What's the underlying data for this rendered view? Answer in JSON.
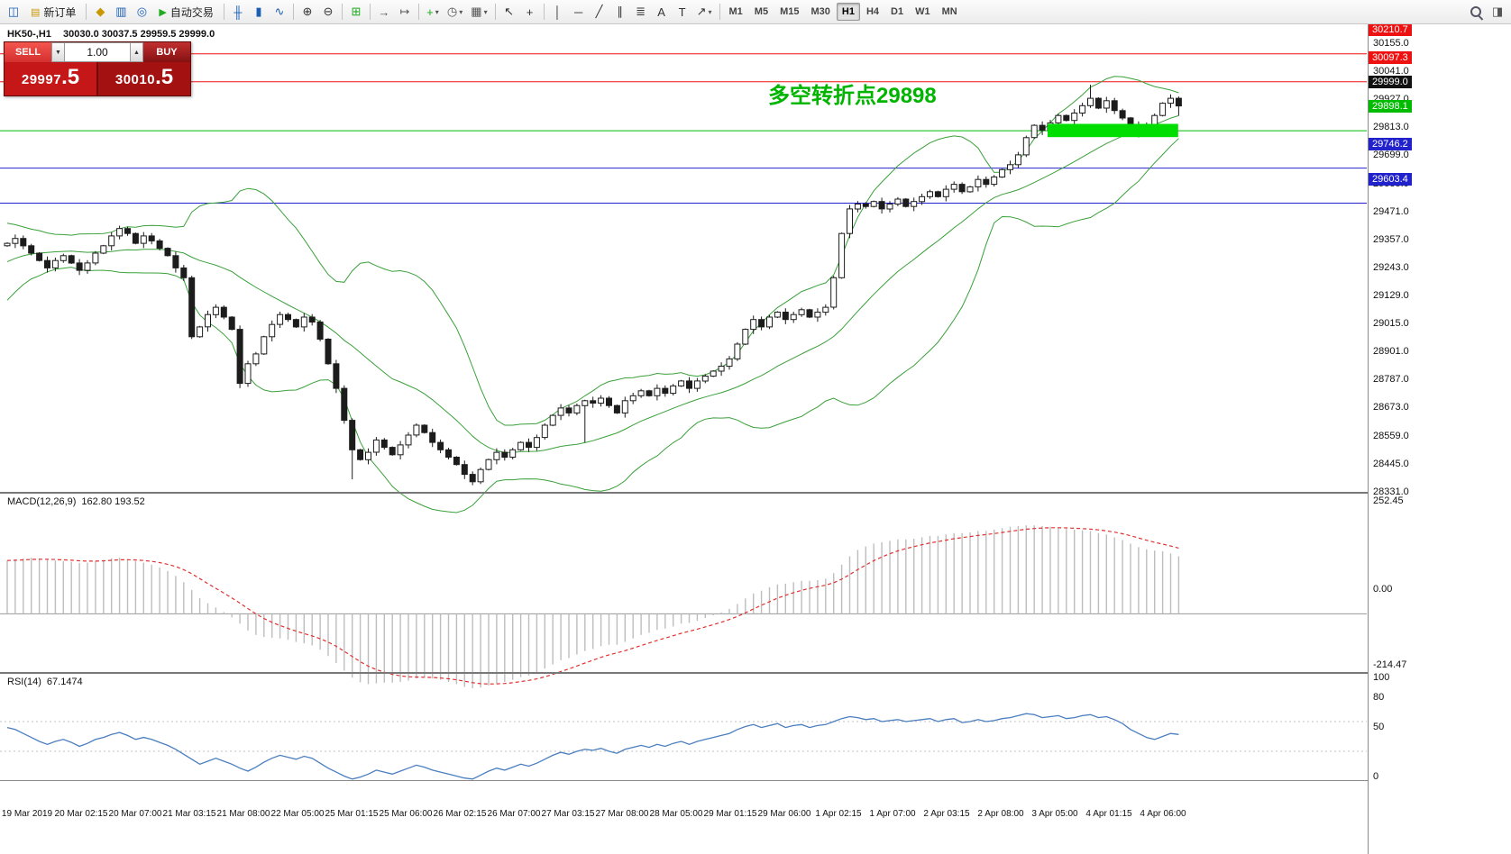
{
  "toolbar": {
    "active_timeframe": "H1",
    "items": [
      {
        "type": "icon",
        "name": "chart-window-icon",
        "glyph": "◫",
        "color": "#1a5fb4"
      },
      {
        "type": "button",
        "name": "new-order-button",
        "icon_name": "new-order-icon",
        "icon_glyph": "▤",
        "icon_color": "#c99700",
        "label": "新订单"
      },
      {
        "type": "sep"
      },
      {
        "type": "icon",
        "name": "market-watch-icon",
        "glyph": "◆",
        "color": "#c99700"
      },
      {
        "type": "icon",
        "name": "data-window-icon",
        "glyph": "▥",
        "color": "#1a5fb4"
      },
      {
        "type": "icon",
        "name": "navigator-icon",
        "glyph": "◎",
        "color": "#1a5fb4"
      },
      {
        "type": "button",
        "name": "auto-trading-button",
        "icon_name": "play-icon",
        "icon_glyph": "▶",
        "icon_color": "#1faa1f",
        "label": "自动交易"
      },
      {
        "type": "sep"
      },
      {
        "type": "icon",
        "name": "bar-chart-icon",
        "glyph": "╫",
        "color": "#1a5fb4"
      },
      {
        "type": "icon",
        "name": "candle-chart-icon",
        "glyph": "▮",
        "color": "#1a5fb4"
      },
      {
        "type": "icon",
        "name": "line-chart-icon",
        "glyph": "∿",
        "color": "#1a5fb4"
      },
      {
        "type": "sep"
      },
      {
        "type": "icon",
        "name": "zoom-in-icon",
        "glyph": "⊕",
        "color": "#333333"
      },
      {
        "type": "icon",
        "name": "zoom-out-icon",
        "glyph": "⊖",
        "color": "#333333"
      },
      {
        "type": "sep"
      },
      {
        "type": "icon",
        "name": "tile-windows-icon",
        "glyph": "⊞",
        "color": "#1faa1f"
      },
      {
        "type": "sep"
      },
      {
        "type": "icon",
        "name": "auto-scroll-icon",
        "glyph": "→",
        "color": "#555555"
      },
      {
        "type": "icon",
        "name": "chart-shift-icon",
        "glyph": "↦",
        "color": "#555555"
      },
      {
        "type": "sep"
      },
      {
        "type": "icon",
        "name": "indicators-icon",
        "glyph": "+",
        "color": "#1faa1f",
        "dropdown": true
      },
      {
        "type": "icon",
        "name": "periods-icon",
        "glyph": "◷",
        "color": "#555555",
        "dropdown": true
      },
      {
        "type": "icon",
        "name": "templates-icon",
        "glyph": "▦",
        "color": "#555555",
        "dropdown": true
      },
      {
        "type": "sep"
      },
      {
        "type": "icon",
        "name": "cursor-icon",
        "glyph": "↖",
        "color": "#333333"
      },
      {
        "type": "icon",
        "name": "crosshair-icon",
        "glyph": "+",
        "color": "#333333"
      },
      {
        "type": "sep"
      },
      {
        "type": "icon",
        "name": "vertical-line-icon",
        "glyph": "│",
        "color": "#333333"
      },
      {
        "type": "icon",
        "name": "horizontal-line-icon",
        "glyph": "─",
        "color": "#333333"
      },
      {
        "type": "icon",
        "name": "trendline-icon",
        "glyph": "╱",
        "color": "#333333"
      },
      {
        "type": "icon",
        "name": "channel-icon",
        "glyph": "∥",
        "color": "#333333"
      },
      {
        "type": "icon",
        "name": "fibonacci-icon",
        "glyph": "≣",
        "color": "#333333"
      },
      {
        "type": "icon",
        "name": "text-icon",
        "glyph": "A",
        "color": "#333333"
      },
      {
        "type": "icon",
        "name": "text-label-icon",
        "glyph": "T",
        "color": "#333333"
      },
      {
        "type": "icon",
        "name": "arrows-icon",
        "glyph": "↗",
        "color": "#333333",
        "dropdown": true
      },
      {
        "type": "sep"
      },
      {
        "type": "tf",
        "name": "timeframe-m1",
        "label": "M1"
      },
      {
        "type": "tf",
        "name": "timeframe-m5",
        "label": "M5"
      },
      {
        "type": "tf",
        "name": "timeframe-m15",
        "label": "M15"
      },
      {
        "type": "tf",
        "name": "timeframe-m30",
        "label": "M30"
      },
      {
        "type": "tf",
        "name": "timeframe-h1",
        "label": "H1"
      },
      {
        "type": "tf",
        "name": "timeframe-h4",
        "label": "H4"
      },
      {
        "type": "tf",
        "name": "timeframe-d1",
        "label": "D1"
      },
      {
        "type": "tf",
        "name": "timeframe-w1",
        "label": "W1"
      },
      {
        "type": "tf",
        "name": "timeframe-mn",
        "label": "MN"
      },
      {
        "type": "spacer"
      },
      {
        "type": "icon",
        "name": "search-icon",
        "glyph": "",
        "magnifier": true
      },
      {
        "type": "icon",
        "name": "panel-toggle-icon",
        "glyph": "◨",
        "color": "#555555"
      }
    ]
  },
  "order_panel": {
    "sell_label": "SELL",
    "buy_label": "BUY",
    "volume": "1.00",
    "dropdown_glyph": "▼",
    "spinner_glyph": "▲",
    "sell_price_main": "29997",
    "sell_price_big": ".5",
    "buy_price_main": "30010",
    "buy_price_big": ".5"
  },
  "chart_data": {
    "type": "candlestick",
    "symbol": "HK50-",
    "timeframe": "H1",
    "title": "HK50-,H1",
    "ohlc_label": "30030.0 30037.5 29959.5 29999.0",
    "axis_price_top": 30232,
    "axis_price_bottom": 28330,
    "candle_color_up": "#ffffff",
    "candle_color_down": "#1c1c1c",
    "candle_outline": "#1c1c1c",
    "price_axis_ticks": [
      {
        "label": "30155.0",
        "price": 30155
      },
      {
        "label": "30041.0",
        "price": 30041
      },
      {
        "label": "29927.0",
        "price": 29927
      },
      {
        "label": "29813.0",
        "price": 29813
      },
      {
        "label": "29699.0",
        "price": 29699
      },
      {
        "label": "29585.0",
        "price": 29585
      },
      {
        "label": "29471.0",
        "price": 29471
      },
      {
        "label": "29357.0",
        "price": 29357
      },
      {
        "label": "29243.0",
        "price": 29243
      },
      {
        "label": "29129.0",
        "price": 29129
      },
      {
        "label": "29015.0",
        "price": 29015
      },
      {
        "label": "28901.0",
        "price": 28901
      },
      {
        "label": "28787.0",
        "price": 28787
      },
      {
        "label": "28673.0",
        "price": 28673
      },
      {
        "label": "28559.0",
        "price": 28559
      },
      {
        "label": "28445.0",
        "price": 28445
      },
      {
        "label": "28331.0",
        "price": 28331
      }
    ],
    "h_lines": [
      {
        "price": 30210.7,
        "label": "30210.7",
        "color": "#ee1111"
      },
      {
        "price": 30097.3,
        "label": "30097.3",
        "color": "#ee1111"
      },
      {
        "price": 29999.0,
        "label": "29999.0",
        "color": "#111111",
        "tag_only": true
      },
      {
        "price": 29898.1,
        "label": "29898.1",
        "color": "#00bb00"
      },
      {
        "price": 29746.2,
        "label": "29746.2",
        "color": "#2222cc"
      },
      {
        "price": 29603.4,
        "label": "29603.4",
        "color": "#2222cc"
      }
    ],
    "highlight_rect": {
      "index_start": 130,
      "index_end": 145.6,
      "price_top": 29926,
      "price_bottom": 29872,
      "color": "#00dd00"
    },
    "annotation": {
      "text": "多空转折点29898",
      "color": "#00b400"
    },
    "bollinger": {
      "period": 20,
      "deviation": 2,
      "color": "#3aa03a"
    },
    "lead_in_closes": [
      29150,
      29180,
      29220,
      29260,
      29300,
      29280,
      29320,
      29360,
      29340,
      29380,
      29400,
      29380,
      29420,
      29440,
      29410,
      29430,
      29450,
      29420,
      29440,
      29430
    ],
    "closes": [
      29440,
      29460,
      29430,
      29400,
      29370,
      29340,
      29370,
      29390,
      29360,
      29330,
      29360,
      29400,
      29430,
      29470,
      29500,
      29480,
      29440,
      29470,
      29450,
      29420,
      29390,
      29340,
      29300,
      29060,
      29100,
      29150,
      29180,
      29140,
      29090,
      28870,
      28950,
      28990,
      29060,
      29110,
      29150,
      29130,
      29100,
      29140,
      29120,
      29050,
      28950,
      28850,
      28720,
      28600,
      28560,
      28590,
      28640,
      28610,
      28580,
      28620,
      28660,
      28700,
      28670,
      28630,
      28600,
      28570,
      28540,
      28500,
      28470,
      28520,
      28560,
      28590,
      28570,
      28600,
      28630,
      28610,
      28650,
      28700,
      28740,
      28770,
      28750,
      28780,
      28800,
      28790,
      28810,
      28780,
      28750,
      28800,
      28820,
      28840,
      28820,
      28850,
      28830,
      28860,
      28880,
      28850,
      28880,
      28900,
      28920,
      28940,
      28970,
      29030,
      29090,
      29130,
      29100,
      29140,
      29160,
      29130,
      29150,
      29170,
      29140,
      29160,
      29180,
      29300,
      29480,
      29580,
      29600,
      29590,
      29610,
      29580,
      29600,
      29620,
      29590,
      29610,
      29630,
      29650,
      29630,
      29660,
      29680,
      29650,
      29670,
      29700,
      29680,
      29710,
      29740,
      29760,
      29800,
      29870,
      29920,
      29900,
      29930,
      29960,
      29940,
      29970,
      30000,
      30030,
      29990,
      30020,
      29980,
      29950,
      29920,
      29890,
      29920,
      29960,
      30010,
      30030,
      29999
    ],
    "wick_overrides": {
      "43": {
        "wd": 120
      },
      "72": {
        "wd": 150
      },
      "135": {
        "wu": 55
      },
      "146": {
        "wu": 7.5,
        "wd": 39.5
      }
    },
    "time_labels": [
      "19 Mar 2019",
      "20 Mar 02:15",
      "20 Mar 07:00",
      "21 Mar 03:15",
      "21 Mar 08:00",
      "22 Mar 05:00",
      "25 Mar 01:15",
      "25 Mar 06:00",
      "26 Mar 02:15",
      "26 Mar 07:00",
      "27 Mar 03:15",
      "27 Mar 08:00",
      "28 Mar 05:00",
      "29 Mar 01:15",
      "29 Mar 06:00",
      "1 Apr 02:15",
      "1 Apr 07:00",
      "2 Apr 03:15",
      "2 Apr 08:00",
      "3 Apr 05:00",
      "4 Apr 01:15",
      "4 Apr 06:00"
    ],
    "indicators": [
      {
        "name": "MACD",
        "label": "MACD(12,26,9)",
        "values_label": "162.80 193.52",
        "axis_labels": [
          "252.45",
          "0.00",
          "-214.47"
        ],
        "axis_values": [
          252.45,
          0,
          -214.47
        ],
        "histogram_color": "#bdbdbd",
        "signal_color": "#e03030",
        "signal_period": 9,
        "values": [
          152,
          155,
          158,
          160,
          158,
          155,
          152,
          150,
          148,
          145,
          146,
          150,
          154,
          158,
          160,
          156,
          150,
          146,
          140,
          132,
          122,
          108,
          90,
          68,
          45,
          30,
          18,
          5,
          -10,
          -28,
          -48,
          -60,
          -66,
          -68,
          -70,
          -74,
          -80,
          -84,
          -90,
          -102,
          -120,
          -140,
          -162,
          -182,
          -195,
          -200,
          -198,
          -196,
          -196,
          -194,
          -190,
          -184,
          -182,
          -184,
          -188,
          -194,
          -200,
          -208,
          -212,
          -210,
          -204,
          -198,
          -194,
          -188,
          -180,
          -176,
          -168,
          -156,
          -144,
          -132,
          -126,
          -116,
          -106,
          -100,
          -92,
          -88,
          -88,
          -80,
          -70,
          -60,
          -54,
          -46,
          -42,
          -36,
          -28,
          -26,
          -20,
          -12,
          -4,
          4,
          14,
          28,
          44,
          58,
          66,
          76,
          84,
          86,
          90,
          94,
          94,
          96,
          100,
          116,
          140,
          164,
          182,
          192,
          200,
          204,
          208,
          212,
          212,
          214,
          218,
          222,
          222,
          226,
          230,
          230,
          232,
          236,
          236,
          240,
          244,
          248,
          250,
          252,
          252,
          250,
          248,
          246,
          242,
          240,
          238,
          236,
          230,
          226,
          218,
          210,
          200,
          190,
          184,
          180,
          178,
          172,
          164
        ]
      },
      {
        "name": "RSI",
        "label": "RSI(14)",
        "values_label": "67.1474",
        "axis_labels": [
          "100",
          "80",
          "50",
          "0"
        ],
        "axis_values": [
          100,
          80,
          50,
          0
        ],
        "levels": [
          80,
          50
        ],
        "level_color": "#c0c0c0",
        "line_color": "#4a7ebf",
        "values": [
          74,
          72,
          68,
          64,
          60,
          57,
          60,
          62,
          59,
          55,
          58,
          62,
          64,
          67,
          69,
          66,
          62,
          64,
          62,
          59,
          56,
          52,
          47,
          42,
          37,
          40,
          43,
          40,
          37,
          33,
          30,
          34,
          39,
          43,
          46,
          44,
          42,
          45,
          43,
          38,
          33,
          29,
          25,
          22,
          24,
          27,
          31,
          29,
          27,
          30,
          33,
          36,
          34,
          31,
          29,
          27,
          25,
          23,
          22,
          26,
          30,
          33,
          31,
          34,
          37,
          35,
          38,
          42,
          46,
          49,
          47,
          50,
          52,
          51,
          53,
          50,
          48,
          52,
          54,
          56,
          54,
          57,
          55,
          58,
          60,
          57,
          60,
          62,
          64,
          66,
          68,
          72,
          75,
          77,
          74,
          76,
          78,
          74,
          76,
          77,
          74,
          76,
          77,
          80,
          83,
          85,
          84,
          82,
          83,
          80,
          81,
          82,
          80,
          81,
          82,
          83,
          80,
          82,
          83,
          79,
          80,
          82,
          80,
          81,
          83,
          84,
          86,
          88,
          87,
          84,
          85,
          86,
          83,
          84,
          86,
          87,
          84,
          85,
          82,
          78,
          72,
          68,
          64,
          62,
          65,
          68,
          67
        ]
      }
    ]
  }
}
